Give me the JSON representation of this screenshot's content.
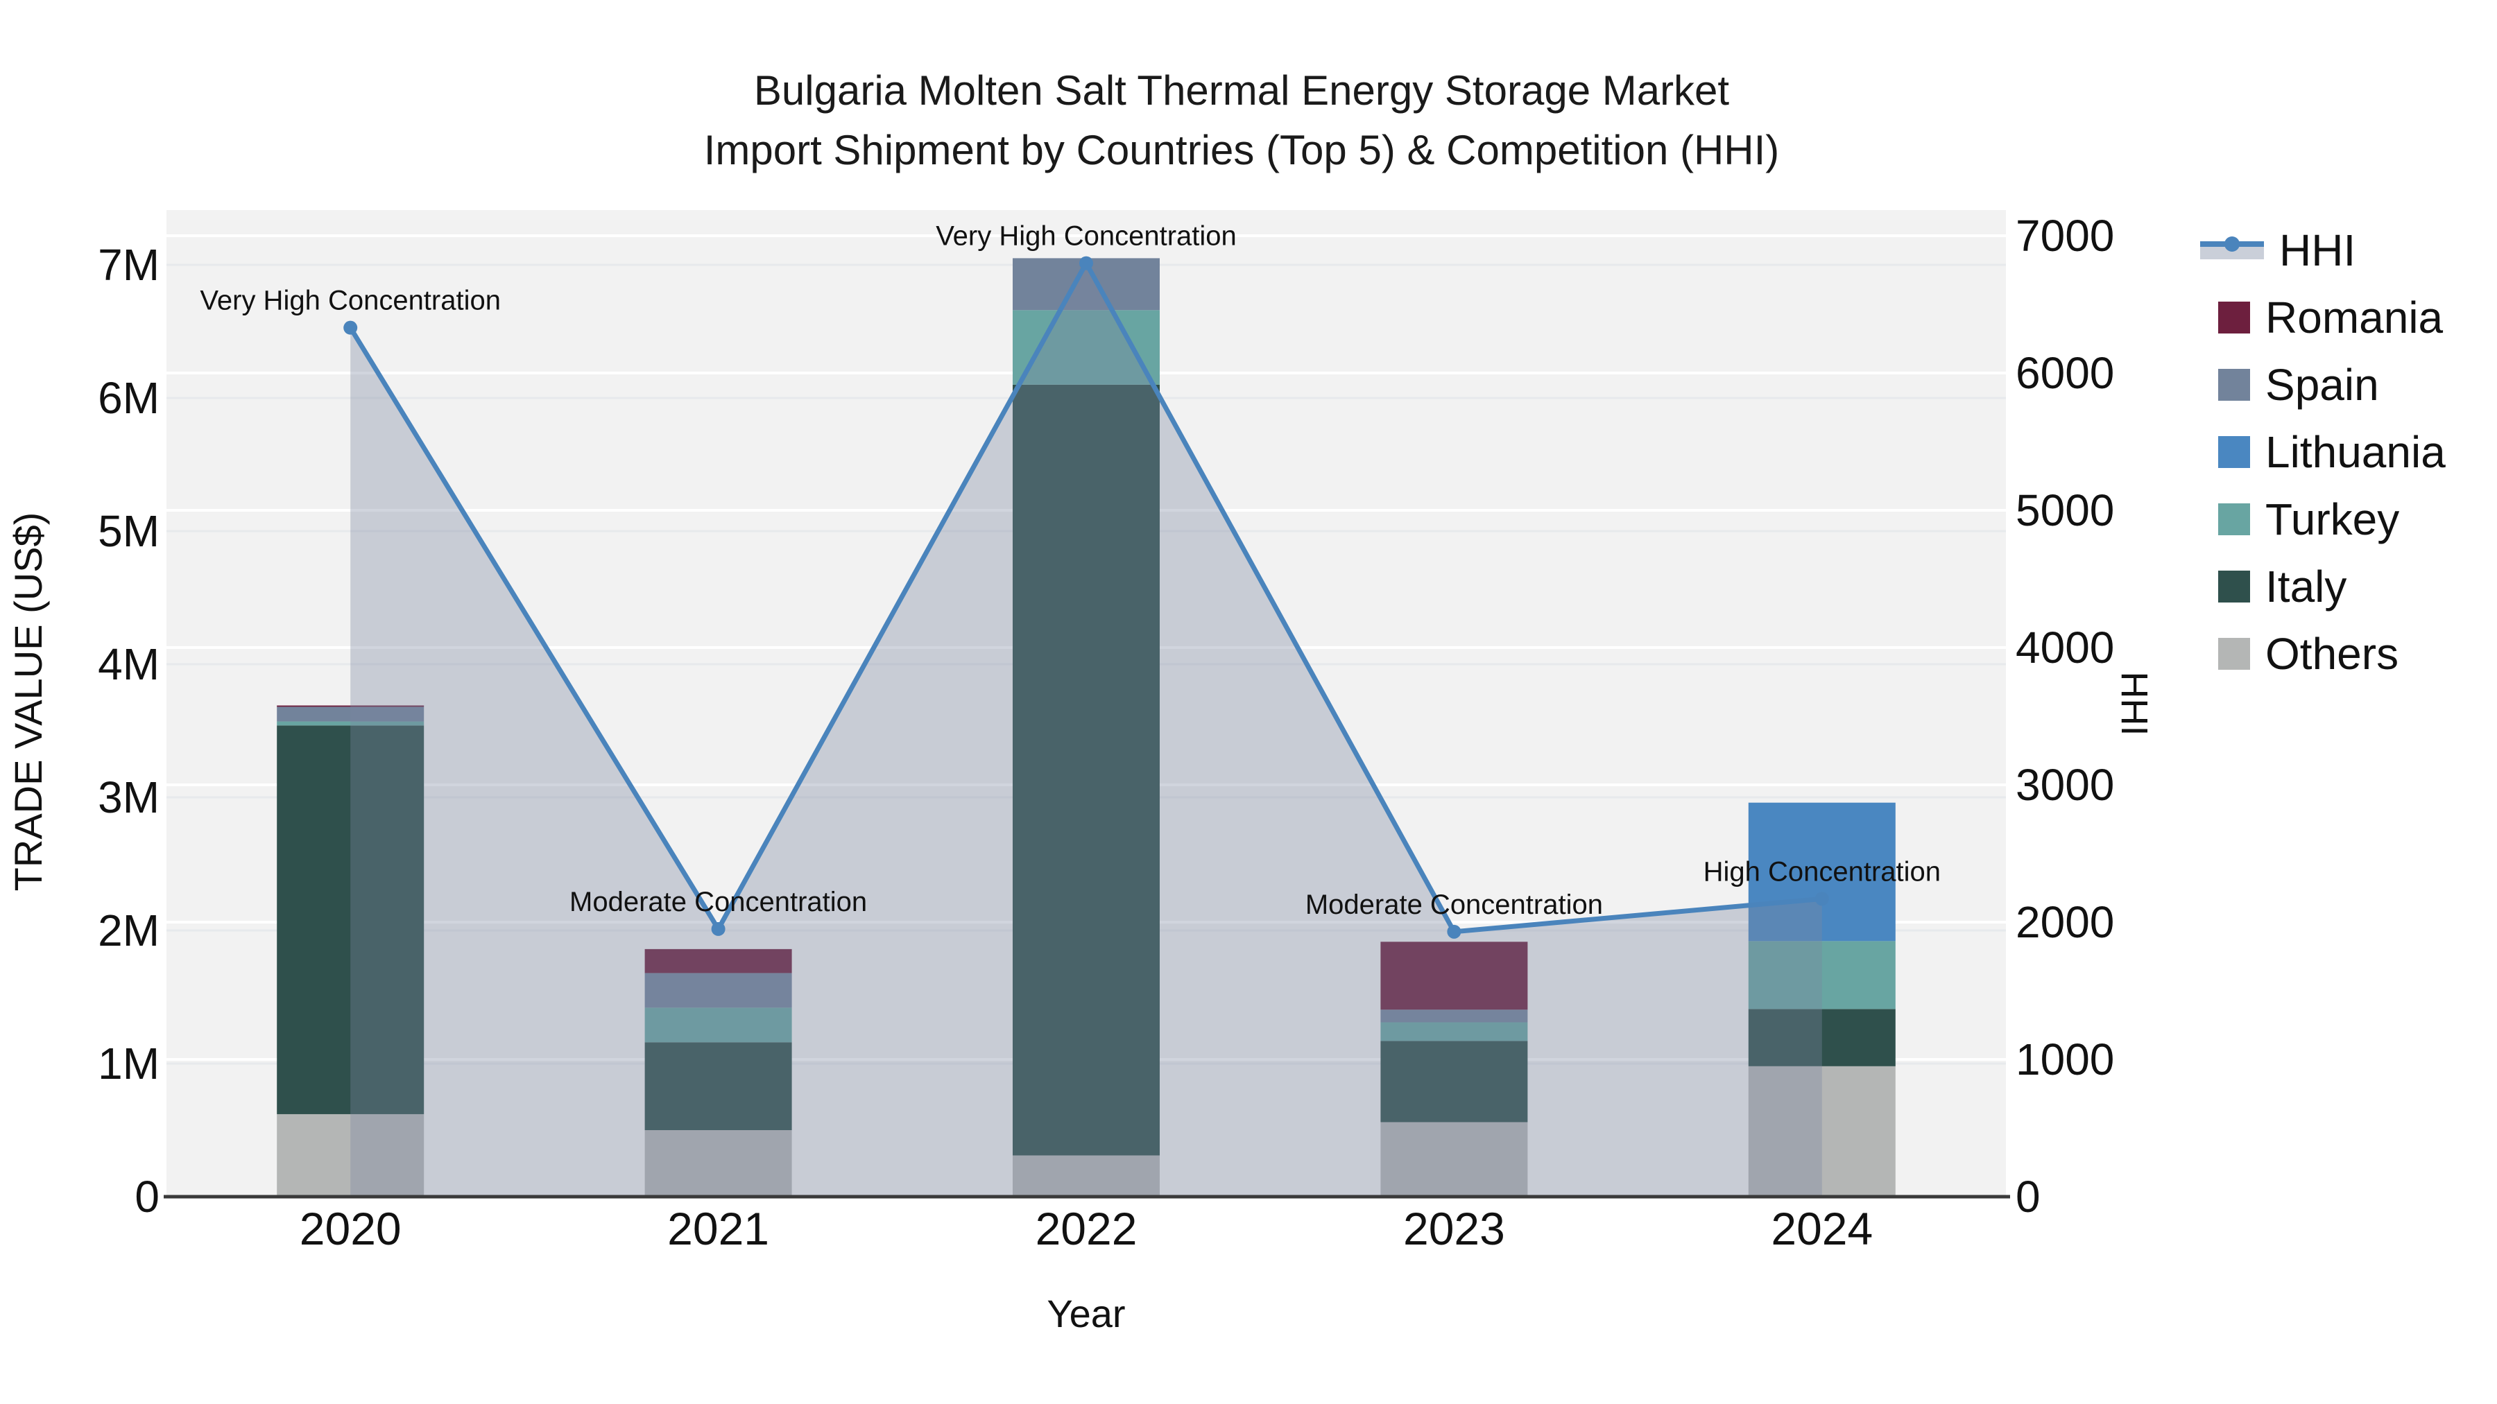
{
  "chart_data": {
    "type": "bar+line",
    "title": "Bulgaria Molten Salt Thermal Energy Storage Market",
    "subtitle": "Import Shipment by Countries (Top 5) & Competition (HHI)",
    "categories": [
      "2020",
      "2021",
      "2022",
      "2023",
      "2024"
    ],
    "bar_series_stacked_bottom_to_top": [
      {
        "name": "Others",
        "color": "#b4b6b5",
        "values": [
          620000,
          500000,
          310000,
          560000,
          980000
        ]
      },
      {
        "name": "Italy",
        "color": "#2f504c",
        "values": [
          2920000,
          660000,
          5790000,
          610000,
          430000
        ]
      },
      {
        "name": "Turkey",
        "color": "#68a5a2",
        "values": [
          30000,
          260000,
          560000,
          140000,
          510000
        ]
      },
      {
        "name": "Lithuania",
        "color": "#4a87c1",
        "values": [
          0,
          0,
          0,
          0,
          1040000
        ]
      },
      {
        "name": "Spain",
        "color": "#72839b",
        "values": [
          110000,
          260000,
          390000,
          95000,
          0
        ]
      },
      {
        "name": "Romania",
        "color": "#6d1f3e",
        "values": [
          10000,
          180000,
          0,
          510000,
          0
        ]
      }
    ],
    "line_series": {
      "name": "HHI",
      "color": "#4a84bc",
      "area_fill_color": "rgba(122,134,160,0.35)",
      "yaxis": "right",
      "values": [
        6330,
        1950,
        6800,
        1930,
        2170
      ]
    },
    "annotations": [
      {
        "category": "2020",
        "text": "Very High Concentration"
      },
      {
        "category": "2021",
        "text": "Moderate Concentration"
      },
      {
        "category": "2022",
        "text": "Very High Concentration"
      },
      {
        "category": "2023",
        "text": "Moderate Concentration"
      },
      {
        "category": "2024",
        "text": "High Concentration"
      }
    ],
    "left_axis": {
      "label": "TRADE VALUE (US$)",
      "ticks": [
        "0",
        "1M",
        "2M",
        "3M",
        "4M",
        "5M",
        "6M",
        "7M"
      ],
      "tick_values": [
        0,
        1000000,
        2000000,
        3000000,
        4000000,
        5000000,
        6000000,
        7000000
      ]
    },
    "right_axis": {
      "label": "HHI",
      "ticks": [
        "0",
        "1000",
        "2000",
        "3000",
        "4000",
        "5000",
        "6000",
        "7000"
      ],
      "tick_values": [
        0,
        1000,
        2000,
        3000,
        4000,
        5000,
        6000,
        7000
      ]
    },
    "x_axis": {
      "label": "Year"
    },
    "grid": true,
    "plot_background": "#f2f2f2",
    "legend_position": "right"
  },
  "legend": {
    "items": [
      {
        "label": "HHI",
        "type": "line",
        "color": "#4a84bc",
        "band_color": "rgba(122,134,160,0.40)"
      },
      {
        "label": "Romania",
        "type": "swatch",
        "color": "#6d1f3e"
      },
      {
        "label": "Spain",
        "type": "swatch",
        "color": "#72839b"
      },
      {
        "label": "Lithuania",
        "type": "swatch",
        "color": "#4a87c1"
      },
      {
        "label": "Turkey",
        "type": "swatch",
        "color": "#68a5a2"
      },
      {
        "label": "Italy",
        "type": "swatch",
        "color": "#2f504c"
      },
      {
        "label": "Others",
        "type": "swatch",
        "color": "#b4b6b5"
      }
    ]
  }
}
